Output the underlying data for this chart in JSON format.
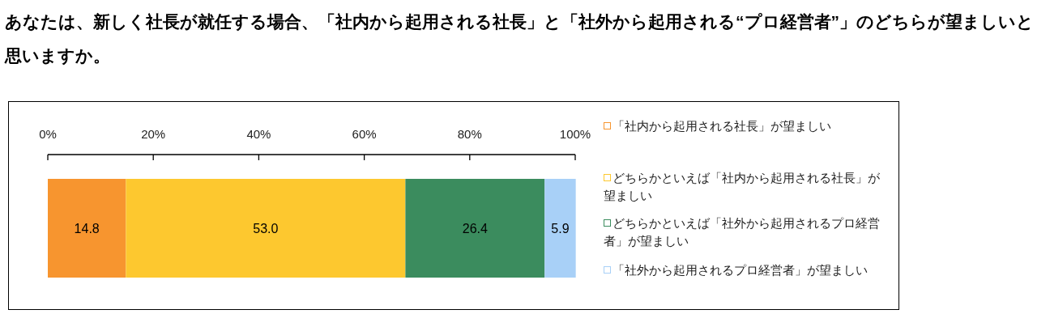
{
  "chart_data": {
    "type": "bar",
    "orientation": "horizontal",
    "stacked": true,
    "title": "あなたは、新しく社長が就任する場合、「社内から起用される社長」と「社外から起用される“プロ経営者”」のどちらが望ましいと思いますか。",
    "categories": [
      null
    ],
    "series": [
      {
        "name": "「社内から起用される社長」が望ましい",
        "color": "#f7952f",
        "values": [
          14.8
        ],
        "value_labels": [
          "14.8"
        ]
      },
      {
        "name": "どちらかといえば「社内から起用される社長」が望ましい",
        "color": "#fdc82f",
        "values": [
          53.0
        ],
        "value_labels": [
          "53.0"
        ]
      },
      {
        "name": "どちらかといえば「社外から起用されるプロ経営者」が望ましい",
        "color": "#3b8c5e",
        "values": [
          26.4
        ],
        "value_labels": [
          "26.4"
        ]
      },
      {
        "name": "「社外から起用されるプロ経営者」が望ましい",
        "color": "#a8d0f7",
        "values": [
          5.9
        ],
        "value_labels": [
          "5.9"
        ]
      }
    ],
    "xlim": [
      0,
      100
    ],
    "xticks": [
      {
        "value": 0,
        "label": "0%"
      },
      {
        "value": 20,
        "label": "20%"
      },
      {
        "value": 40,
        "label": "40%"
      },
      {
        "value": 60,
        "label": "60%"
      },
      {
        "value": 80,
        "label": "80%"
      },
      {
        "value": 100,
        "label": "100%"
      }
    ],
    "legend": "right"
  }
}
